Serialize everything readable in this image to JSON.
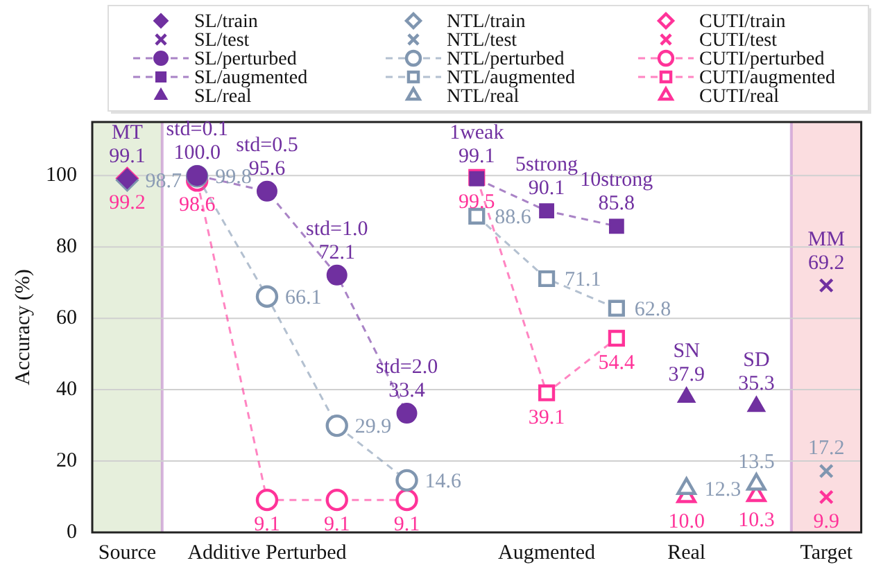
{
  "chart_data": {
    "type": "scatter",
    "ylabel": "Accuracy (%)",
    "categories": [
      "Source",
      null,
      "Additive Perturbed",
      null,
      null,
      null,
      "Augmented",
      null,
      "Real",
      null,
      "Target"
    ],
    "ylim": [
      0,
      115
    ],
    "yticks": [
      0,
      20,
      40,
      60,
      80,
      100
    ],
    "grid": "y",
    "legend": "top",
    "data_labels": true,
    "series": [
      {
        "name": "SL/train",
        "marker": "diamond",
        "color": "#7030a0",
        "values": [
          99.1,
          null,
          null,
          null,
          null,
          null,
          null,
          null,
          null,
          null,
          null
        ],
        "value_labels": [
          "99.1",
          null,
          null,
          null,
          null,
          null,
          null,
          null,
          null,
          null,
          null
        ]
      },
      {
        "name": "NTL/train",
        "marker": "diamond",
        "color": "#8096b0",
        "values": [
          98.7,
          null,
          null,
          null,
          null,
          null,
          null,
          null,
          null,
          null,
          null
        ],
        "value_labels": [
          "98.7",
          null,
          null,
          null,
          null,
          null,
          null,
          null,
          null,
          null,
          null
        ]
      },
      {
        "name": "CUTI/train",
        "marker": "diamond",
        "color": "#ff3399",
        "values": [
          99.2,
          null,
          null,
          null,
          null,
          null,
          null,
          null,
          null,
          null,
          null
        ],
        "value_labels": [
          "99.2",
          null,
          null,
          null,
          null,
          null,
          null,
          null,
          null,
          null,
          null
        ]
      },
      {
        "name": "SL/test",
        "marker": "cross",
        "color": "#7030a0",
        "values": [
          null,
          null,
          null,
          null,
          null,
          null,
          null,
          null,
          null,
          null,
          69.2
        ],
        "value_labels": [
          null,
          null,
          null,
          null,
          null,
          null,
          null,
          null,
          null,
          null,
          "69.2"
        ]
      },
      {
        "name": "NTL/test",
        "marker": "cross",
        "color": "#8096b0",
        "values": [
          null,
          null,
          null,
          null,
          null,
          null,
          null,
          null,
          null,
          null,
          17.2
        ],
        "value_labels": [
          null,
          null,
          null,
          null,
          null,
          null,
          null,
          null,
          null,
          null,
          "17.2"
        ]
      },
      {
        "name": "CUTI/test",
        "marker": "cross",
        "color": "#ff3399",
        "values": [
          null,
          null,
          null,
          null,
          null,
          null,
          null,
          null,
          null,
          null,
          9.9
        ],
        "value_labels": [
          null,
          null,
          null,
          null,
          null,
          null,
          null,
          null,
          null,
          null,
          "9.9"
        ]
      },
      {
        "name": "SL/perturbed",
        "type": "line",
        "line_style": "dashed",
        "marker": "circle",
        "color": "#7030a0",
        "values": [
          null,
          100.0,
          95.6,
          72.1,
          33.4,
          null,
          null,
          null,
          null,
          null,
          null
        ],
        "value_labels": [
          null,
          "100.0",
          "95.6",
          "72.1",
          "33.4",
          null,
          null,
          null,
          null,
          null,
          null
        ]
      },
      {
        "name": "NTL/perturbed",
        "type": "line",
        "line_style": "dashed",
        "marker": "circle",
        "color": "#8096b0",
        "values": [
          null,
          99.8,
          66.1,
          29.9,
          14.6,
          null,
          null,
          null,
          null,
          null,
          null
        ],
        "value_labels": [
          null,
          "99.8",
          "66.1",
          "29.9",
          "14.6",
          null,
          null,
          null,
          null,
          null,
          null
        ]
      },
      {
        "name": "CUTI/perturbed",
        "type": "line",
        "line_style": "dashed",
        "marker": "circle",
        "color": "#ff3399",
        "values": [
          null,
          98.6,
          9.1,
          9.1,
          9.1,
          null,
          null,
          null,
          null,
          null,
          null
        ],
        "value_labels": [
          null,
          "98.6",
          "9.1",
          "9.1",
          "9.1",
          null,
          null,
          null,
          null,
          null,
          null
        ]
      },
      {
        "name": "SL/augmented",
        "type": "line",
        "line_style": "dashed",
        "marker": "square",
        "color": "#7030a0",
        "values": [
          null,
          null,
          null,
          null,
          null,
          99.1,
          90.1,
          85.8,
          null,
          null,
          null
        ],
        "value_labels": [
          null,
          null,
          null,
          null,
          null,
          "99.1",
          "90.1",
          "85.8",
          null,
          null,
          null
        ]
      },
      {
        "name": "NTL/augmented",
        "type": "line",
        "line_style": "dashed",
        "marker": "square",
        "color": "#8096b0",
        "values": [
          null,
          null,
          null,
          null,
          null,
          88.6,
          71.1,
          62.8,
          null,
          null,
          null
        ],
        "value_labels": [
          null,
          null,
          null,
          null,
          null,
          "88.6",
          "71.1",
          "62.8",
          null,
          null,
          null
        ]
      },
      {
        "name": "CUTI/augmented",
        "type": "line",
        "line_style": "dashed",
        "marker": "square",
        "color": "#ff3399",
        "values": [
          null,
          null,
          null,
          null,
          null,
          99.5,
          39.1,
          54.4,
          null,
          null,
          null
        ],
        "value_labels": [
          null,
          null,
          null,
          null,
          null,
          "99.5",
          "39.1",
          "54.4",
          null,
          null,
          null
        ]
      },
      {
        "name": "SL/real",
        "marker": "triangle",
        "color": "#7030a0",
        "values": [
          null,
          null,
          null,
          null,
          null,
          null,
          null,
          null,
          37.9,
          35.3,
          null
        ],
        "value_labels": [
          null,
          null,
          null,
          null,
          null,
          null,
          null,
          null,
          "37.9",
          "35.3",
          null
        ]
      },
      {
        "name": "NTL/real",
        "marker": "triangle",
        "color": "#8096b0",
        "values": [
          null,
          null,
          null,
          null,
          null,
          null,
          null,
          null,
          12.3,
          13.5,
          null
        ],
        "value_labels": [
          null,
          null,
          null,
          null,
          null,
          null,
          null,
          null,
          "12.3",
          "13.5",
          null
        ]
      },
      {
        "name": "CUTI/real",
        "marker": "triangle",
        "color": "#ff3399",
        "values": [
          null,
          null,
          null,
          null,
          null,
          null,
          null,
          null,
          10.0,
          10.3,
          null
        ],
        "value_labels": [
          null,
          null,
          null,
          null,
          null,
          null,
          null,
          null,
          "10.0",
          "10.3",
          null
        ]
      }
    ],
    "bands": [
      {
        "axis": "x",
        "from": "Source",
        "to": "Source",
        "color": "#e6efdc"
      },
      {
        "axis": "x",
        "from": "Target",
        "to": "Target",
        "color": "#fbdde0"
      }
    ],
    "annotations": [
      {
        "text": "MT",
        "y": 99.1
      },
      {
        "text": "std=0.1",
        "y": 100.0
      },
      {
        "text": "std=0.5",
        "y": 95.6
      },
      {
        "text": "std=1.0",
        "y": 72.1
      },
      {
        "text": "std=2.0",
        "y": 33.4
      },
      {
        "text": "1weak",
        "y": 99.1
      },
      {
        "text": "5strong",
        "y": 90.1
      },
      {
        "text": "10strong",
        "y": 85.8
      },
      {
        "text": "SN",
        "y": 37.9
      },
      {
        "text": "SD",
        "y": 35.3
      },
      {
        "text": "MM",
        "y": 69.2
      }
    ]
  }
}
